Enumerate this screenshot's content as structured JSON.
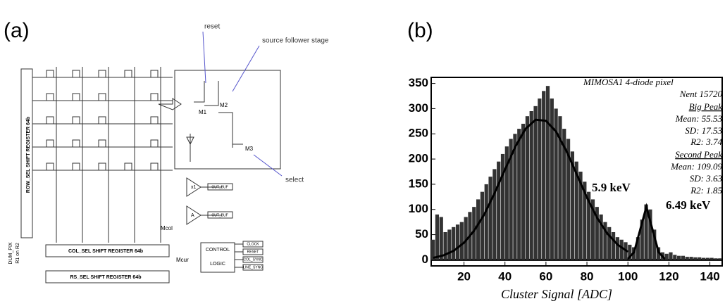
{
  "panel_a": {
    "label": "(a)",
    "reset": "reset",
    "source_follower": "source follower stage",
    "select": "select",
    "row_reg": "ROW_SEL SHIFT REGISTER 64b",
    "col_reg": "COL_SEL SHIFT REGISTER 64b",
    "rs_reg": "RS_SEL SHIFT REGISTER 64b",
    "control": "CONTROL",
    "logic": "LOGIC",
    "signals": [
      "CLOCK",
      "RESET",
      "COL_SYNC",
      "LINE_SYNC"
    ],
    "m1": "M1",
    "m2": "M2",
    "m3": "M3",
    "mcol": "Mcol",
    "mcur": "Mcur",
    "dum": "DUM_PIX",
    "dum2": "R1 on R2",
    "x1": "x1",
    "amp": "A",
    "out1": "OUT_BUF",
    "out2": "OUT_BUF"
  },
  "chart_data": {
    "type": "histogram",
    "panel_label": "(b)",
    "x_label": "Cluster Signal [ADC]",
    "bins": [
      4,
      6,
      8,
      10,
      12,
      14,
      16,
      18,
      20,
      22,
      24,
      26,
      28,
      30,
      32,
      34,
      36,
      38,
      40,
      42,
      44,
      46,
      48,
      50,
      52,
      54,
      56,
      58,
      60,
      62,
      64,
      66,
      68,
      70,
      72,
      74,
      76,
      78,
      80,
      82,
      84,
      86,
      88,
      90,
      92,
      94,
      96,
      98,
      100,
      102,
      104,
      106,
      108,
      110,
      112,
      114,
      116,
      118,
      120,
      122,
      124,
      126,
      128,
      130,
      132,
      134,
      136,
      138,
      140,
      142,
      144,
      146
    ],
    "counts": [
      40,
      90,
      85,
      55,
      60,
      65,
      70,
      75,
      85,
      95,
      105,
      120,
      135,
      150,
      165,
      180,
      195,
      210,
      225,
      240,
      250,
      260,
      270,
      285,
      295,
      305,
      320,
      335,
      345,
      320,
      300,
      285,
      260,
      240,
      215,
      195,
      175,
      155,
      135,
      120,
      105,
      90,
      75,
      65,
      55,
      45,
      40,
      35,
      30,
      25,
      45,
      80,
      110,
      100,
      60,
      25,
      15,
      12,
      15,
      10,
      8,
      8,
      6,
      6,
      5,
      5,
      4,
      4,
      4,
      3,
      3
    ],
    "color": "#333333",
    "fits": [
      {
        "x": [
          5,
          10,
          15,
          20,
          25,
          30,
          35,
          40,
          45,
          50,
          55,
          60,
          65,
          70,
          75,
          80,
          85,
          90,
          95,
          100
        ],
        "values": [
          4,
          9,
          18,
          34,
          58,
          91,
          133,
          179,
          224,
          260,
          278,
          276,
          254,
          216,
          170,
          124,
          83,
          52,
          30,
          16
        ]
      },
      {
        "x": [
          100,
          103,
          106,
          109,
          112,
          115,
          118
        ],
        "values": [
          2,
          15,
          60,
          105,
          60,
          15,
          2
        ]
      }
    ],
    "xlim": [
      4,
      146
    ],
    "ylim": [
      -12,
      362
    ],
    "xticks": [
      20,
      40,
      60,
      80,
      100,
      120,
      140
    ],
    "yticks": [
      0,
      50,
      100,
      150,
      200,
      250,
      300,
      350
    ],
    "annotations": [
      "MIMOSA1 4-diode pixel",
      "Nent 15720",
      "Big Peak",
      "Mean: 55.53",
      "SD: 17.53",
      "R2: 3.74",
      "Second Peak",
      "Mean: 109.09",
      "SD: 3.63",
      "R2: 1.85",
      "5.9 keV",
      "6.49 keV"
    ]
  }
}
